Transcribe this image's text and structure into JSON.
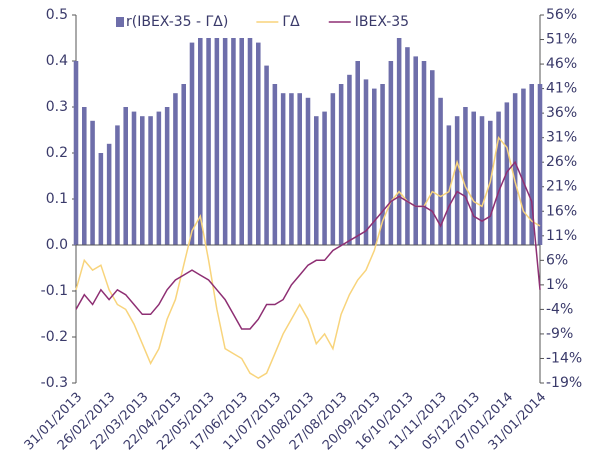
{
  "chart_data": {
    "type": "combo",
    "categories": [
      "31/01/2013",
      null,
      null,
      null,
      "26/02/2013",
      null,
      null,
      null,
      "22/03/2013",
      null,
      null,
      null,
      "22/04/2013",
      null,
      null,
      null,
      "22/05/2013",
      null,
      null,
      null,
      "17/06/2013",
      null,
      null,
      null,
      "11/07/2013",
      null,
      null,
      null,
      "01/08/2013",
      null,
      null,
      null,
      "27/08/2013",
      null,
      null,
      null,
      "20/09/2013",
      null,
      null,
      null,
      "16/10/2013",
      null,
      null,
      null,
      "11/11/2013",
      null,
      null,
      null,
      "05/12/2013",
      null,
      null,
      null,
      "07/01/2014",
      null,
      null,
      null,
      "31/01/2014"
    ],
    "series": [
      {
        "name": "r(IBEX-35 - ΓΔ)",
        "type": "bar",
        "color": "#6e6eaa",
        "axis": "y",
        "values": [
          0.4,
          0.3,
          0.27,
          0.2,
          0.22,
          0.26,
          0.3,
          0.29,
          0.28,
          0.28,
          0.29,
          0.3,
          0.33,
          0.35,
          0.44,
          0.45,
          0.45,
          0.45,
          0.45,
          0.45,
          0.45,
          0.45,
          0.44,
          0.39,
          0.35,
          0.33,
          0.33,
          0.33,
          0.32,
          0.28,
          0.29,
          0.33,
          0.35,
          0.37,
          0.4,
          0.36,
          0.34,
          0.35,
          0.4,
          0.45,
          0.43,
          0.41,
          0.4,
          0.38,
          0.32,
          0.26,
          0.28,
          0.3,
          0.29,
          0.28,
          0.27,
          0.29,
          0.31,
          0.33,
          0.34,
          0.35,
          0.35
        ]
      },
      {
        "name": "ΓΔ",
        "type": "line",
        "color": "#f8d47c",
        "axis": "y2",
        "values": [
          0,
          6,
          4,
          5,
          0,
          -3,
          -4,
          -7,
          -11,
          -15,
          -12,
          -6,
          -2,
          5,
          12,
          15,
          6,
          -4,
          -12,
          -13,
          -14,
          -17,
          -18,
          -17,
          -13,
          -9,
          -6,
          -3,
          -6,
          -11,
          -9,
          -12,
          -5,
          -1,
          2,
          4,
          8,
          14,
          18,
          20,
          18,
          17,
          17,
          20,
          19,
          20,
          26,
          21,
          18,
          17,
          22,
          31,
          29,
          22,
          16,
          14,
          13
        ]
      },
      {
        "name": "IBEX-35",
        "type": "line",
        "color": "#8e2f73",
        "axis": "y2",
        "values": [
          -4,
          -1,
          -3,
          0,
          -2,
          0,
          -1,
          -3,
          -5,
          -5,
          -3,
          0,
          2,
          3,
          4,
          3,
          2,
          0,
          -2,
          -5,
          -8,
          -8,
          -6,
          -3,
          -3,
          -2,
          1,
          3,
          5,
          6,
          6,
          8,
          9,
          10,
          11,
          12,
          14,
          16,
          18,
          19,
          18,
          17,
          17,
          16,
          13,
          17,
          20,
          19,
          15,
          14,
          15,
          20,
          24,
          26,
          22,
          18,
          0
        ]
      }
    ],
    "ylim": [
      -0.3,
      0.5
    ],
    "yticks": [
      -0.3,
      -0.2,
      -0.1,
      {
        "value": 0,
        "label": "0.0"
      },
      0.1,
      0.2,
      0.3,
      0.4,
      0.5
    ],
    "y2lim": [
      -19,
      56
    ],
    "y2ticks": [
      {
        "value": -19,
        "label": "-19%"
      },
      {
        "value": -14,
        "label": "-14%"
      },
      {
        "value": -9,
        "label": "-9%"
      },
      {
        "value": -4,
        "label": "-4%"
      },
      {
        "value": 1,
        "label": "1%"
      },
      {
        "value": 6,
        "label": "6%"
      },
      {
        "value": 11,
        "label": "11%"
      },
      {
        "value": 16,
        "label": "16%"
      },
      {
        "value": 21,
        "label": "21%"
      },
      {
        "value": 26,
        "label": "26%"
      },
      {
        "value": 31,
        "label": "31%"
      },
      {
        "value": 36,
        "label": "36%"
      },
      {
        "value": 41,
        "label": "41%"
      },
      {
        "value": 46,
        "label": "46%"
      },
      {
        "value": 51,
        "label": "51%"
      },
      {
        "value": 56,
        "label": "56%"
      }
    ],
    "legend": "top"
  }
}
